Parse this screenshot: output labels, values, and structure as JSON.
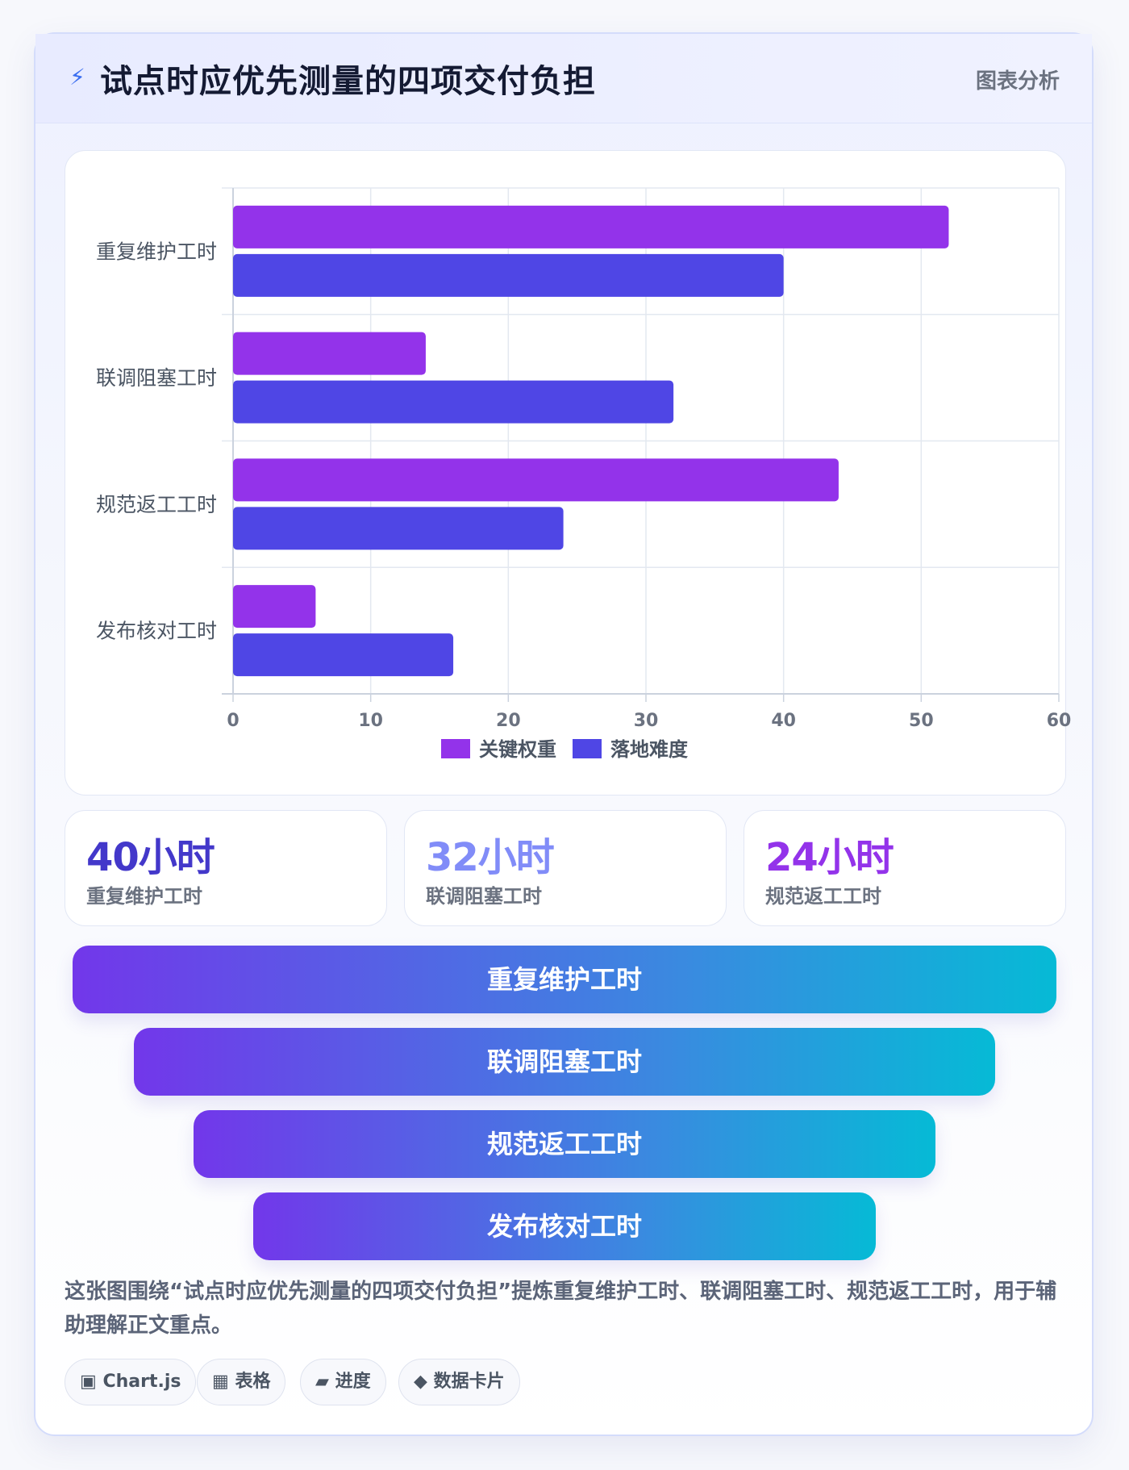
{
  "header": {
    "title": "试点时应优先测量的四项交付负担",
    "tag": "图表分析",
    "icon": "lightning-icon"
  },
  "chart_data": {
    "type": "bar",
    "orientation": "horizontal",
    "categories": [
      "重复维护工时",
      "联调阻塞工时",
      "规范返工工时",
      "发布核对工时"
    ],
    "series": [
      {
        "name": "关键权重",
        "values": [
          52,
          14,
          44,
          6
        ],
        "color": "#9333ea"
      },
      {
        "name": "落地难度",
        "values": [
          40,
          32,
          24,
          16
        ],
        "color": "#4f46e5"
      }
    ],
    "xlim": [
      0,
      60
    ],
    "xticks": [
      0,
      10,
      20,
      30,
      40,
      50,
      60
    ],
    "grid": true,
    "legend_position": "bottom-center"
  },
  "stats": [
    {
      "value": "40小时",
      "label": "重复维护工时",
      "color": "#4338ca"
    },
    {
      "value": "32小时",
      "label": "联调阻塞工时",
      "color": "#818cf8"
    },
    {
      "value": "24小时",
      "label": "规范返工工时",
      "color": "#9333ea"
    }
  ],
  "funnel": [
    "重复维护工时",
    "联调阻塞工时",
    "规范返工工时",
    "发布核对工时"
  ],
  "description": "这张图围绕“试点时应优先测量的四项交付负担”提炼重复维护工时、联调阻塞工时、规范返工工时，用于辅助理解正文重点。",
  "chips": [
    {
      "icon": "▣",
      "label": "Chart.js"
    },
    {
      "icon": "▦",
      "label": "表格"
    },
    {
      "icon": "▰",
      "label": "进度"
    },
    {
      "icon": "◆",
      "label": "数据卡片"
    }
  ]
}
